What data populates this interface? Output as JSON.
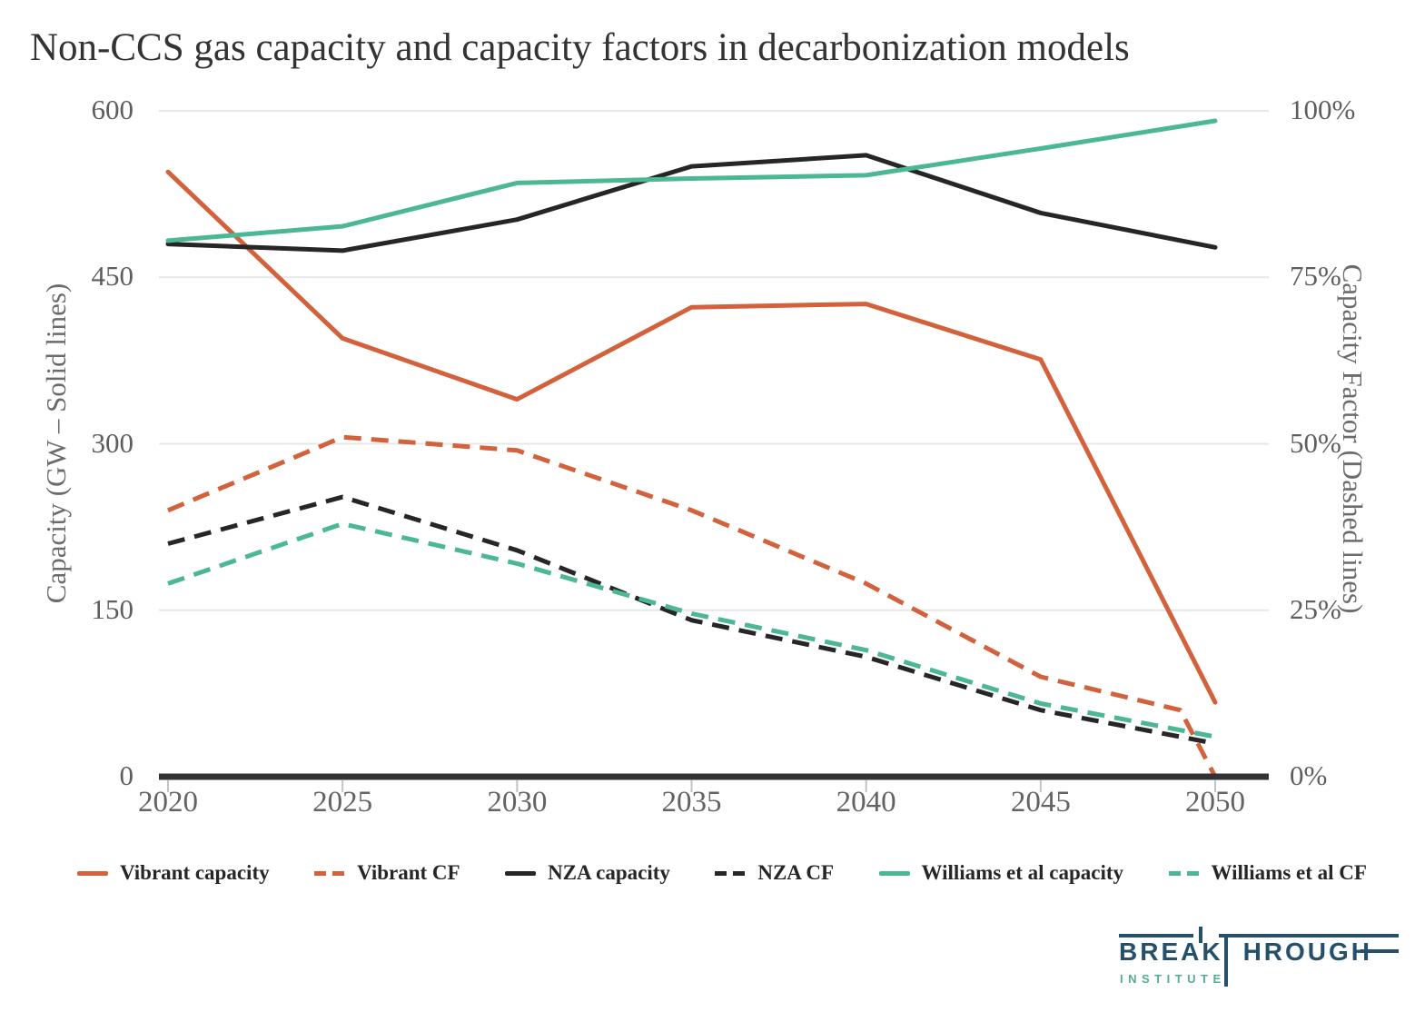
{
  "title": "Non-CCS gas capacity and capacity factors in decarbonization models",
  "chart_data": {
    "type": "line",
    "x": [
      2020,
      2025,
      2030,
      2035,
      2040,
      2045,
      2050
    ],
    "x_tick_labels": [
      "2020",
      "2025",
      "2030",
      "2035",
      "2040",
      "2045",
      "2050"
    ],
    "left_axis": {
      "label": "Capacity (GW – Solid lines)",
      "ticks": [
        "600",
        "450",
        "300",
        "150",
        "0"
      ],
      "range": [
        0,
        600
      ]
    },
    "right_axis": {
      "label": "Capacity Factor (Dashed lines)",
      "ticks": [
        "100%",
        "75%",
        "50%",
        "25%",
        "0%"
      ],
      "range": [
        0,
        100
      ]
    },
    "grid": true,
    "legend_position": "bottom",
    "series": [
      {
        "name": "Vibrant capacity",
        "axis": "left",
        "line": "solid",
        "color": "#d2613c",
        "values": [
          545,
          395,
          340,
          423,
          426,
          376,
          67
        ]
      },
      {
        "name": "Vibrant CF",
        "axis": "right",
        "line": "dashed",
        "color": "#d2613c",
        "x": [
          2020,
          2025,
          2030,
          2035,
          2040,
          2045,
          2049,
          2050
        ],
        "values": [
          40,
          51,
          49,
          40,
          29,
          15,
          10,
          0
        ]
      },
      {
        "name": "NZA capacity",
        "axis": "left",
        "line": "solid",
        "color": "#262626",
        "values": [
          480,
          474,
          502,
          550,
          560,
          508,
          477
        ]
      },
      {
        "name": "NZA CF",
        "axis": "right",
        "line": "dashed",
        "color": "#262626",
        "values": [
          35,
          42,
          34,
          23.5,
          18,
          10,
          5
        ]
      },
      {
        "name": "Williams et al capacity",
        "axis": "left",
        "line": "solid",
        "color": "#4bb795",
        "values": [
          483,
          496,
          535,
          539,
          542,
          566,
          591
        ]
      },
      {
        "name": "Williams et al CF",
        "axis": "right",
        "line": "dashed",
        "color": "#4bb795",
        "values": [
          29,
          38,
          32,
          24.5,
          19,
          11,
          6
        ]
      }
    ]
  },
  "logo": {
    "parts": [
      "BREAK",
      "HROUGH"
    ],
    "subtitle": "INSTITUTE",
    "navy": "#24506b",
    "teal": "#53ae90"
  }
}
